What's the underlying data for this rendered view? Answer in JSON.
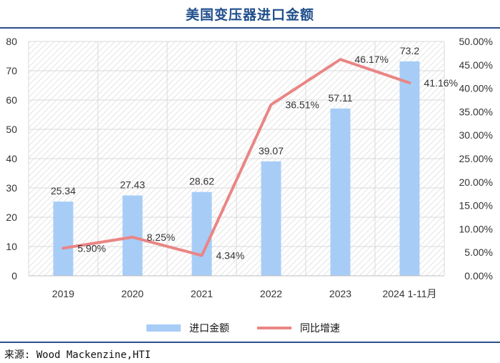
{
  "title": "美国变压器进口金额",
  "source": "来源: Wood Mackenzine,HTI",
  "colors": {
    "bar": "#a7cdf7",
    "line": "#ea8585",
    "title": "#1f4e8c",
    "grid": "#d9d9d9"
  },
  "chart_data": {
    "type": "bar",
    "categories": [
      "2019",
      "2020",
      "2021",
      "2022",
      "2023",
      "2024 1-11月"
    ],
    "series": [
      {
        "name": "进口金额",
        "type": "bar",
        "axis": "left",
        "values": [
          25.34,
          27.43,
          28.62,
          39.07,
          57.11,
          73.2
        ],
        "labels": [
          "25.34",
          "27.43",
          "28.62",
          "39.07",
          "57.11",
          "73.2"
        ]
      },
      {
        "name": "同比增速",
        "type": "line",
        "axis": "right",
        "values": [
          5.9,
          8.25,
          4.34,
          36.51,
          46.17,
          41.16
        ],
        "labels": [
          "5.90%",
          "8.25%",
          "4.34%",
          "36.51%",
          "46.17%",
          "41.16%"
        ]
      }
    ],
    "y_left": {
      "min": 0,
      "max": 80,
      "step": 10,
      "ticks": [
        "0",
        "10",
        "20",
        "30",
        "40",
        "50",
        "60",
        "70",
        "80"
      ]
    },
    "y_right": {
      "min": 0,
      "max": 50,
      "step": 5,
      "ticks": [
        "0.00%",
        "5.00%",
        "10.00%",
        "15.00%",
        "20.00%",
        "25.00%",
        "30.00%",
        "35.00%",
        "40.00%",
        "45.00%",
        "50.00%"
      ]
    },
    "grid": true,
    "legend_position": "bottom"
  }
}
